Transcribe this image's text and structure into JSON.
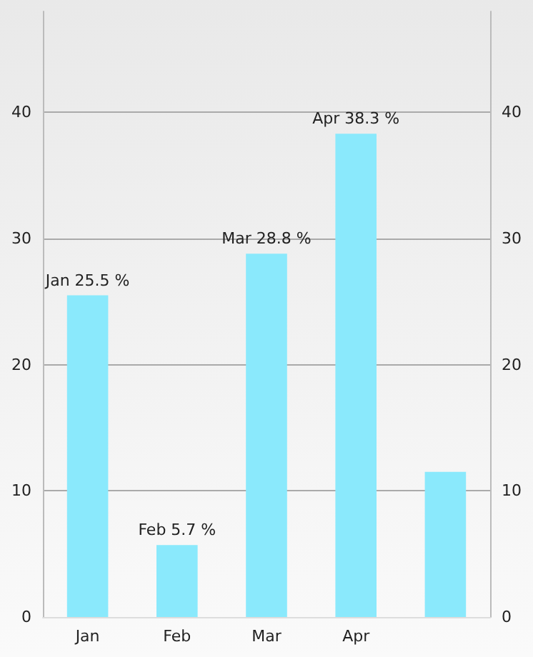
{
  "chart_data": {
    "type": "bar",
    "categories": [
      "Jan",
      "Feb",
      "Mar",
      "Apr",
      null
    ],
    "values": [
      25.5,
      5.7,
      28.8,
      38.3,
      11.5
    ],
    "color": "#8ae9fc",
    "value_labels": [
      "Jan 25.5 %",
      "Feb 5.7 %",
      "Mar 28.8 %",
      "Apr 38.3 %",
      null
    ],
    "ylim": [
      0,
      48
    ],
    "yticks": [
      0,
      10,
      20,
      30,
      40
    ],
    "y2lim": [
      0,
      48
    ],
    "y2ticks": [
      0,
      10,
      20,
      30,
      40
    ],
    "grid": "y"
  }
}
